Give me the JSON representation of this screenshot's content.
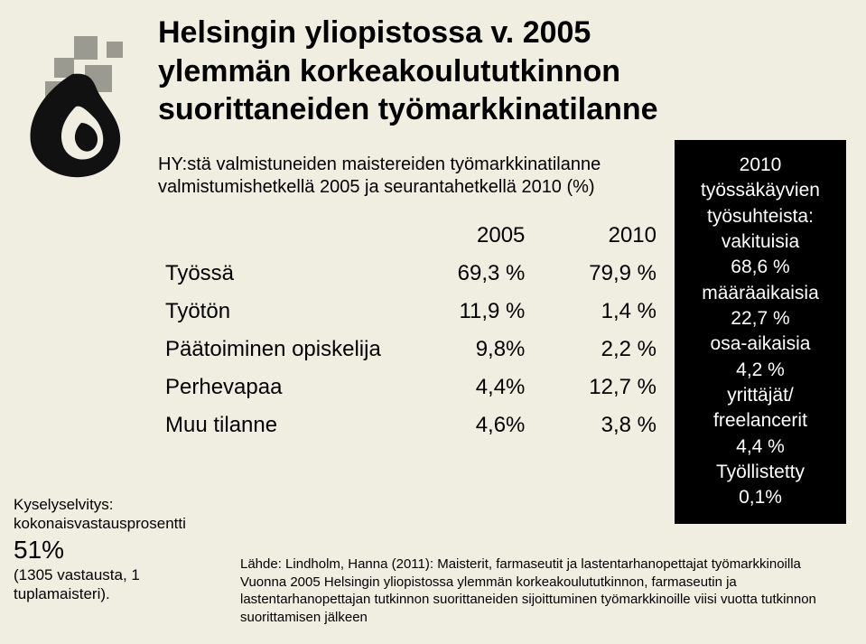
{
  "title": {
    "line1": "Helsingin yliopistossa v. 2005",
    "line2": "ylemmän korkeakoulututkinnon",
    "line3": "suorittaneiden työmarkkinatilanne"
  },
  "subtitle": "HY:stä valmistuneiden maistereiden työmarkkinatilanne valmistumishetkellä 2005 ja seurantahetkellä 2010 (%)",
  "table": {
    "col1": "2005",
    "col2": "2010",
    "rows": [
      {
        "label": "Työssä",
        "v1": "69,3 %",
        "v2": "79,9 %"
      },
      {
        "label": "Työtön",
        "v1": "11,9 %",
        "v2": "1,4 %"
      },
      {
        "label": "Päätoiminen opiskelija",
        "v1": "9,8%",
        "v2": "2,2 %"
      },
      {
        "label": "Perhevapaa",
        "v1": "4,4%",
        "v2": "12,7 %"
      },
      {
        "label": "Muu tilanne",
        "v1": "4,6%",
        "v2": "3,8 %"
      }
    ]
  },
  "sidebar": {
    "heading1": "2010",
    "heading2": "työssäkäyvien",
    "heading3": "työsuhteista:",
    "items": [
      {
        "label": "vakituisia",
        "pct": "68,6 %"
      },
      {
        "label": "määräaikaisia",
        "pct": "22,7  %"
      },
      {
        "label": "osa-aikaisia",
        "pct": "4,2 %"
      },
      {
        "label": "yrittäjät/ freelancerit",
        "pct": "4,4 %"
      },
      {
        "label": "Työllistetty",
        "pct": "0,1%"
      }
    ]
  },
  "footnote_left": {
    "line1": "Kyselyselvitys:",
    "line2": "kokonaisvastausprosentti",
    "pct": "51%",
    "line3": "(1305 vastausta, 1 tuplamaisteri)."
  },
  "source": "Lähde: Lindholm, Hanna (2011): Maisterit, farmaseutit ja lastentarhanopettajat työmarkkinoilla  Vuonna 2005 Helsingin yliopistossa ylemmän korkeakoulututkinnon, farmaseutin ja lastentarhanopettajan tutkinnon suorittaneiden sijoittuminen työmarkkinoille viisi vuotta tutkinnon suorittamisen jälkeen",
  "colors": {
    "background": "#f0eee0",
    "sidebar_bg": "#000000",
    "sidebar_fg": "#ffffff",
    "text": "#000000",
    "flame_dark": "#111111",
    "flame_gray": "#9a9a91"
  }
}
